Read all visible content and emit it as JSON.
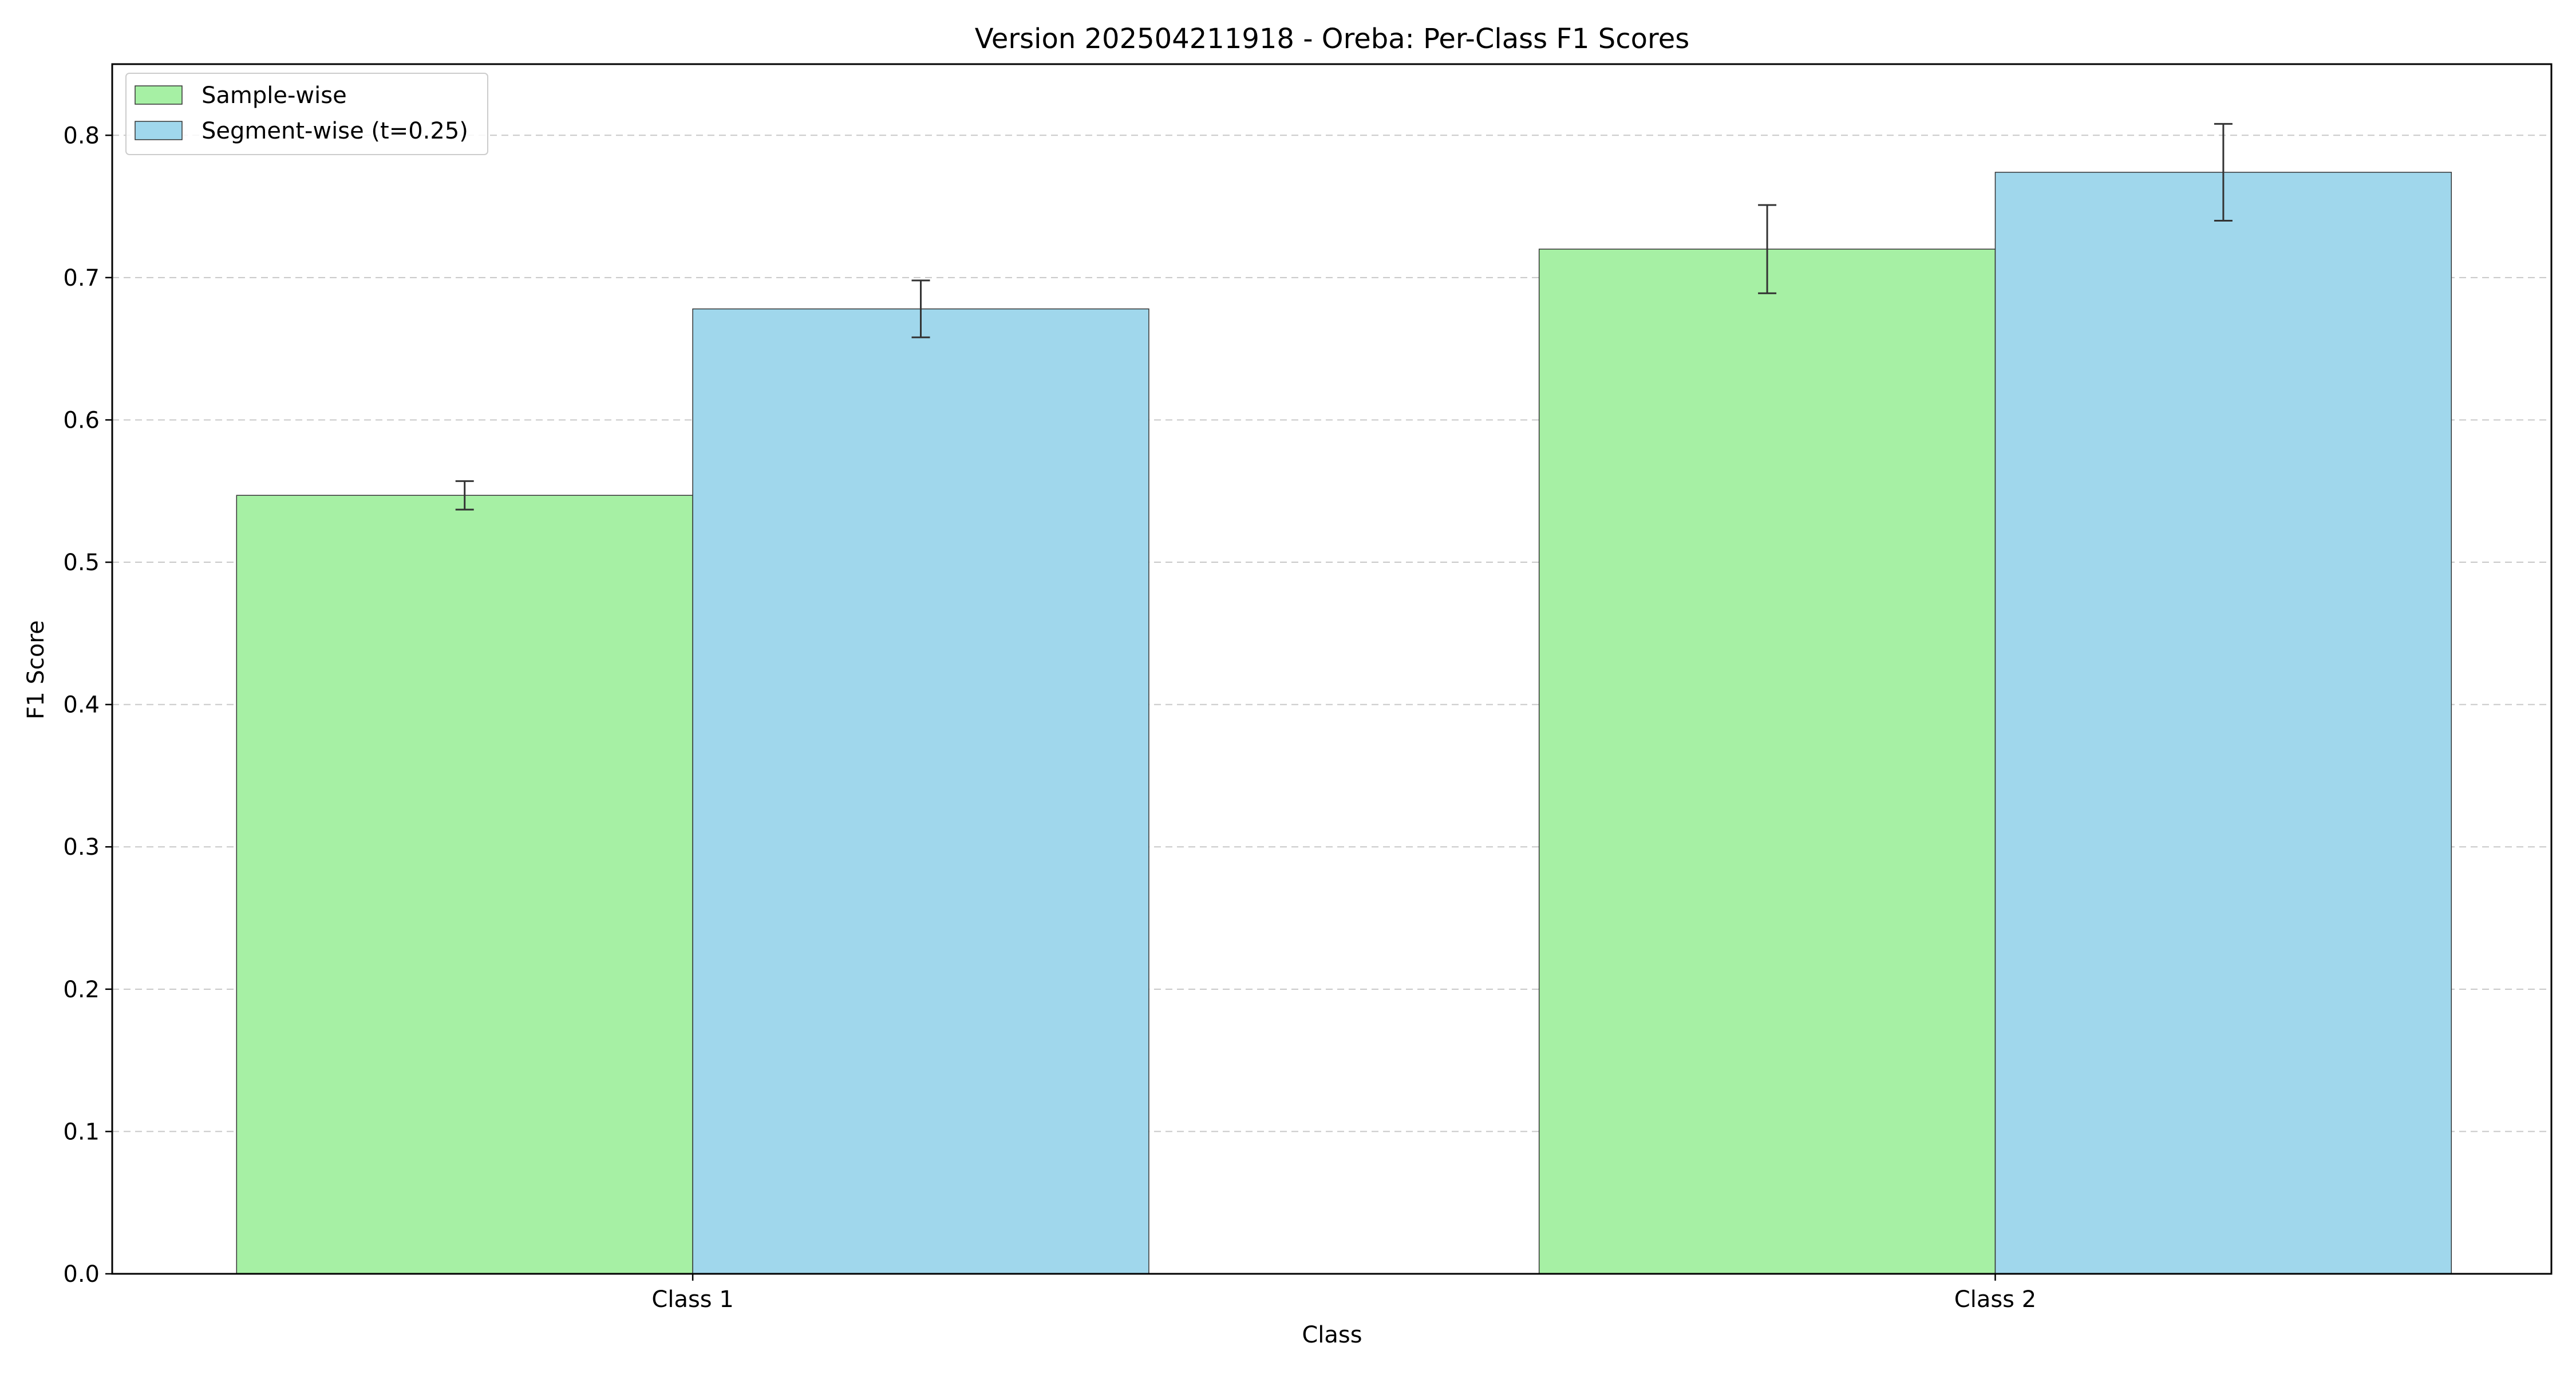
{
  "chart_data": {
    "type": "bar",
    "title": "Version 202504211918 - Oreba: Per-Class F1 Scores",
    "xlabel": "Class",
    "ylabel": "F1 Score",
    "categories": [
      "Class 1",
      "Class 2"
    ],
    "ylim": [
      0,
      0.85
    ],
    "yticks": [
      0.0,
      0.1,
      0.2,
      0.3,
      0.4,
      0.5,
      0.6,
      0.7,
      0.8
    ],
    "ytick_labels": [
      "0.0",
      "0.1",
      "0.2",
      "0.3",
      "0.4",
      "0.5",
      "0.6",
      "0.7",
      "0.8"
    ],
    "grid": "y, dashed",
    "legend_placement": "top-left",
    "series": [
      {
        "name": "Sample-wise",
        "values": [
          0.547,
          0.72
        ],
        "errors": [
          0.01,
          0.031
        ],
        "color": "#a6f0a4"
      },
      {
        "name": "Segment-wise (t=0.25)",
        "values": [
          0.678,
          0.774
        ],
        "errors": [
          0.02,
          0.034
        ],
        "color": "#a0d7ec"
      }
    ]
  }
}
